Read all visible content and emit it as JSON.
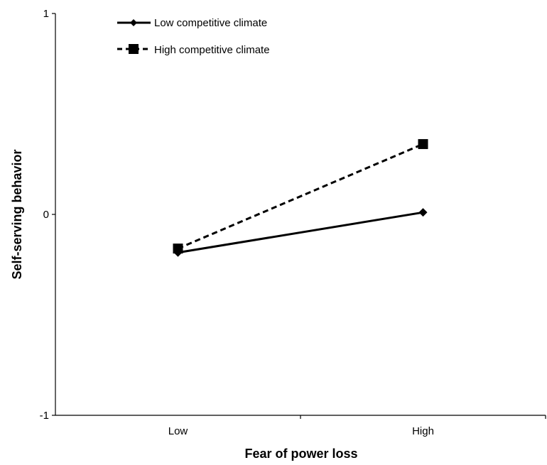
{
  "chart_data": {
    "type": "line",
    "title": "",
    "xlabel": "Fear of power loss",
    "ylabel": "Self-serving  behavior",
    "categories": [
      "Low",
      "High"
    ],
    "ylim": [
      -1,
      1
    ],
    "yticks": [
      "-1",
      "0",
      "1"
    ],
    "grid": false,
    "legend_position": "top-left",
    "series": [
      {
        "name": "Low competitive climate",
        "values": [
          -0.19,
          0.01
        ],
        "line_style": "solid",
        "marker": "diamond",
        "color": "#000000"
      },
      {
        "name": "High competitive climate",
        "values": [
          -0.17,
          0.35
        ],
        "line_style": "dashed",
        "marker": "square",
        "color": "#000000"
      }
    ]
  }
}
